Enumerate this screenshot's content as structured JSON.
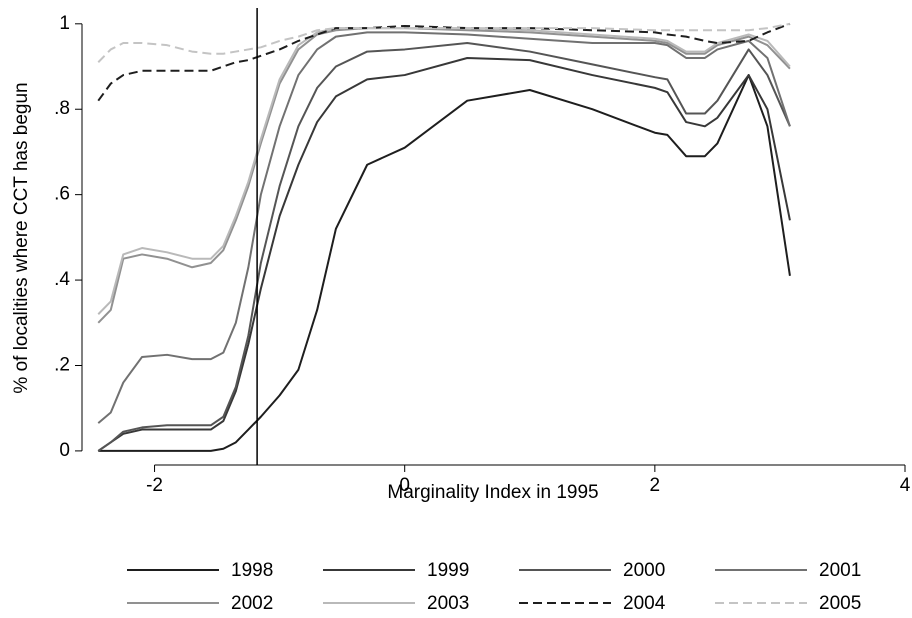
{
  "chart_data": {
    "type": "line",
    "xlabel": "Marginality Index in 1995",
    "ylabel": "% of localities where CCT has begun",
    "x": [
      -2.45,
      -2.35,
      -2.25,
      -2.1,
      -1.9,
      -1.7,
      -1.55,
      -1.45,
      -1.35,
      -1.25,
      -1.15,
      -1.0,
      -0.85,
      -0.7,
      -0.55,
      -0.3,
      0,
      0.5,
      1.0,
      1.5,
      2.0,
      2.1,
      2.25,
      2.4,
      2.5,
      2.75,
      2.9,
      3.08
    ],
    "series": [
      {
        "name": "1998",
        "color": "#1e1e1e",
        "dash": false,
        "values": [
          0,
          0,
          0,
          0,
          0,
          0,
          0,
          0.005,
          0.02,
          0.05,
          0.08,
          0.13,
          0.19,
          0.33,
          0.52,
          0.67,
          0.71,
          0.82,
          0.845,
          0.8,
          0.745,
          0.74,
          0.69,
          0.69,
          0.72,
          0.88,
          0.76,
          0.41
        ]
      },
      {
        "name": "1999",
        "color": "#383838",
        "dash": false,
        "values": [
          0,
          0.02,
          0.04,
          0.05,
          0.05,
          0.05,
          0.05,
          0.07,
          0.14,
          0.25,
          0.38,
          0.55,
          0.67,
          0.77,
          0.83,
          0.87,
          0.88,
          0.92,
          0.915,
          0.88,
          0.85,
          0.84,
          0.77,
          0.76,
          0.78,
          0.88,
          0.8,
          0.54
        ]
      },
      {
        "name": "2000",
        "color": "#555555",
        "dash": false,
        "values": [
          0,
          0.02,
          0.045,
          0.055,
          0.06,
          0.06,
          0.06,
          0.08,
          0.15,
          0.27,
          0.44,
          0.62,
          0.76,
          0.85,
          0.9,
          0.935,
          0.94,
          0.955,
          0.935,
          0.905,
          0.875,
          0.87,
          0.79,
          0.79,
          0.82,
          0.94,
          0.88,
          0.76
        ]
      },
      {
        "name": "2001",
        "color": "#717171",
        "dash": false,
        "values": [
          0.065,
          0.09,
          0.16,
          0.22,
          0.225,
          0.215,
          0.215,
          0.23,
          0.3,
          0.43,
          0.6,
          0.76,
          0.88,
          0.94,
          0.97,
          0.98,
          0.98,
          0.975,
          0.965,
          0.955,
          0.955,
          0.95,
          0.92,
          0.92,
          0.94,
          0.96,
          0.92,
          0.76
        ]
      },
      {
        "name": "2002",
        "color": "#919191",
        "dash": false,
        "values": [
          0.3,
          0.33,
          0.45,
          0.46,
          0.45,
          0.43,
          0.44,
          0.47,
          0.54,
          0.62,
          0.72,
          0.86,
          0.94,
          0.975,
          0.985,
          0.99,
          0.99,
          0.985,
          0.98,
          0.97,
          0.96,
          0.955,
          0.93,
          0.93,
          0.95,
          0.97,
          0.95,
          0.895
        ]
      },
      {
        "name": "2003",
        "color": "#b9b9b9",
        "dash": false,
        "values": [
          0.32,
          0.35,
          0.46,
          0.475,
          0.465,
          0.45,
          0.45,
          0.48,
          0.55,
          0.63,
          0.73,
          0.87,
          0.95,
          0.98,
          0.99,
          0.99,
          0.99,
          0.99,
          0.985,
          0.975,
          0.965,
          0.96,
          0.935,
          0.935,
          0.955,
          0.975,
          0.96,
          0.9
        ]
      },
      {
        "name": "2004",
        "color": "#1e1e1e",
        "dash": true,
        "values": [
          0.82,
          0.86,
          0.88,
          0.89,
          0.89,
          0.89,
          0.89,
          0.9,
          0.91,
          0.915,
          0.925,
          0.94,
          0.96,
          0.975,
          0.99,
          0.99,
          0.995,
          0.99,
          0.99,
          0.985,
          0.98,
          0.975,
          0.97,
          0.96,
          0.955,
          0.96,
          0.98,
          1.0
        ]
      },
      {
        "name": "2005",
        "color": "#c4c4c4",
        "dash": true,
        "values": [
          0.91,
          0.94,
          0.955,
          0.955,
          0.95,
          0.935,
          0.93,
          0.93,
          0.935,
          0.94,
          0.945,
          0.96,
          0.97,
          0.985,
          0.99,
          0.99,
          0.99,
          0.99,
          0.99,
          0.99,
          0.985,
          0.985,
          0.985,
          0.985,
          0.985,
          0.985,
          0.99,
          1.0
        ]
      }
    ],
    "vline": -1.18,
    "xlim": [
      -2.58,
      4
    ],
    "xticks": [
      -2,
      0,
      2,
      4
    ],
    "ylim": [
      -0.033,
      1.03
    ],
    "yticks": [
      0,
      {
        "value": 0.2,
        "label": ".2"
      },
      {
        "value": 0.4,
        "label": ".4"
      },
      {
        "value": 0.6,
        "label": ".6"
      },
      {
        "value": 0.8,
        "label": ".8"
      },
      1
    ],
    "grid": false,
    "legend": "bottom"
  }
}
